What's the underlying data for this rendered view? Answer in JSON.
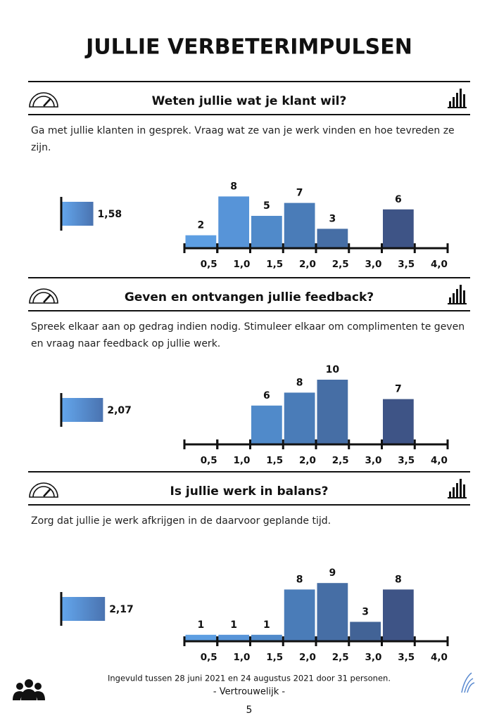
{
  "title": "JULLIE VERBETERIMPULSEN",
  "sections": [
    {
      "heading": "Weten jullie wat je klant wil?",
      "description": "Ga met jullie klanten in gesprek. Vraag wat ze van je werk vinden en hoe tevreden ze zijn.",
      "score": {
        "value": 1.58,
        "label": "1,58"
      },
      "chart": {
        "type": "histogram",
        "bins": [
          0,
          0.5,
          1.0,
          1.5,
          2.0,
          2.5,
          3.0,
          3.5,
          4.0
        ],
        "counts": [
          2,
          8,
          5,
          7,
          3,
          0,
          6,
          0
        ],
        "xlim": [
          0,
          4
        ],
        "ylim": [
          0,
          10
        ],
        "xticks": [
          {
            "value": 0.5,
            "label": "0,5"
          },
          {
            "value": 1.0,
            "label": "1,0"
          },
          {
            "value": 1.5,
            "label": "1,5"
          },
          {
            "value": 2.0,
            "label": "2,0"
          },
          {
            "value": 2.5,
            "label": "2,5"
          },
          {
            "value": 3.0,
            "label": "3,0"
          },
          {
            "value": 3.5,
            "label": "3,5"
          },
          {
            "value": 4.0,
            "label": "4,0"
          }
        ],
        "colors": [
          "#5d9ee2",
          "#5794d8",
          "#508aca",
          "#4a7cb8",
          "#466ea5",
          "#426396",
          "#3e5486",
          "#3a4b79"
        ]
      }
    },
    {
      "heading": "Geven en ontvangen jullie feedback?",
      "description": "Spreek elkaar aan op gedrag indien nodig. Stimuleer elkaar om complimenten te geven en vraag naar feedback op jullie werk.",
      "score": {
        "value": 2.07,
        "label": "2,07"
      },
      "chart": {
        "type": "histogram",
        "bins": [
          0,
          0.5,
          1.0,
          1.5,
          2.0,
          2.5,
          3.0,
          3.5,
          4.0
        ],
        "counts": [
          0,
          0,
          6,
          8,
          10,
          0,
          7,
          0
        ],
        "xlim": [
          0,
          4
        ],
        "ylim": [
          0,
          10
        ],
        "xticks": [
          {
            "value": 0.5,
            "label": "0,5"
          },
          {
            "value": 1.0,
            "label": "1,0"
          },
          {
            "value": 1.5,
            "label": "1,5"
          },
          {
            "value": 2.0,
            "label": "2,0"
          },
          {
            "value": 2.5,
            "label": "2,5"
          },
          {
            "value": 3.0,
            "label": "3,0"
          },
          {
            "value": 3.5,
            "label": "3,5"
          },
          {
            "value": 4.0,
            "label": "4,0"
          }
        ],
        "colors": [
          "#5d9ee2",
          "#5794d8",
          "#508aca",
          "#4a7cb8",
          "#466ea5",
          "#426396",
          "#3e5486",
          "#3a4b79"
        ]
      }
    },
    {
      "heading": "Is jullie werk in balans?",
      "description": "Zorg dat jullie je werk afkrijgen in de daarvoor geplande tijd.",
      "score": {
        "value": 2.17,
        "label": "2,17"
      },
      "chart": {
        "type": "histogram",
        "bins": [
          0,
          0.5,
          1.0,
          1.5,
          2.0,
          2.5,
          3.0,
          3.5,
          4.0
        ],
        "counts": [
          1,
          1,
          1,
          8,
          9,
          3,
          8,
          0
        ],
        "xlim": [
          0,
          4
        ],
        "ylim": [
          0,
          10
        ],
        "xticks": [
          {
            "value": 0.5,
            "label": "0,5"
          },
          {
            "value": 1.0,
            "label": "1,0"
          },
          {
            "value": 1.5,
            "label": "1,5"
          },
          {
            "value": 2.0,
            "label": "2,0"
          },
          {
            "value": 2.5,
            "label": "2,5"
          },
          {
            "value": 3.0,
            "label": "3,0"
          },
          {
            "value": 3.5,
            "label": "3,5"
          },
          {
            "value": 4.0,
            "label": "4,0"
          }
        ],
        "colors": [
          "#5d9ee2",
          "#5794d8",
          "#508aca",
          "#4a7cb8",
          "#466ea5",
          "#426396",
          "#3e5486",
          "#3a4b79"
        ]
      }
    }
  ],
  "footer": {
    "note": "Ingevuld tussen 28 juni 2021 en 24 augustus 2021 door 31 personen.",
    "confidential": "- Vertrouwelijk -",
    "page": "5"
  }
}
